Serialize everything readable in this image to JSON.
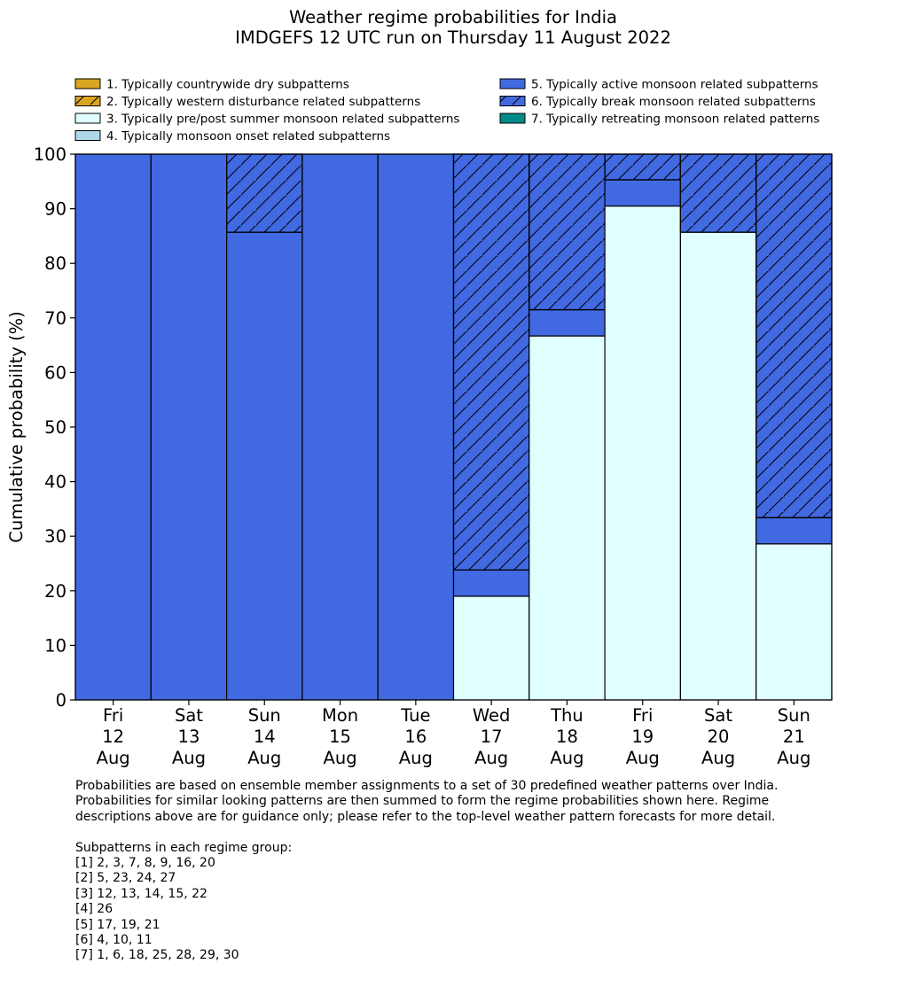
{
  "chart_data": {
    "type": "bar",
    "stacked": true,
    "title": "Weather regime probabilities for India",
    "subtitle": "IMDGEFS 12 UTC run on Thursday 11 August 2022",
    "ylabel": "Cumulative probability (%)",
    "xlabel": "",
    "ylim": [
      0,
      100
    ],
    "yticks": [
      "0",
      "10",
      "20",
      "30",
      "40",
      "50",
      "60",
      "70",
      "80",
      "90",
      "100"
    ],
    "grid": false,
    "legend_position": "top",
    "categories": [
      {
        "day": "Fri",
        "date": "12",
        "month": "Aug"
      },
      {
        "day": "Sat",
        "date": "13",
        "month": "Aug"
      },
      {
        "day": "Sun",
        "date": "14",
        "month": "Aug"
      },
      {
        "day": "Mon",
        "date": "15",
        "month": "Aug"
      },
      {
        "day": "Tue",
        "date": "16",
        "month": "Aug"
      },
      {
        "day": "Wed",
        "date": "17",
        "month": "Aug"
      },
      {
        "day": "Thu",
        "date": "18",
        "month": "Aug"
      },
      {
        "day": "Fri",
        "date": "19",
        "month": "Aug"
      },
      {
        "day": "Sat",
        "date": "20",
        "month": "Aug"
      },
      {
        "day": "Sun",
        "date": "21",
        "month": "Aug"
      }
    ],
    "series": [
      {
        "name": "1. Typically countrywide dry subpatterns",
        "color": "#daa520",
        "hatch": false,
        "values": [
          0,
          0,
          0,
          0,
          0,
          0,
          0,
          0,
          0,
          0
        ]
      },
      {
        "name": "2. Typically western disturbance related subpatterns",
        "color": "#daa520",
        "hatch": true,
        "values": [
          0,
          0,
          0,
          0,
          0,
          0,
          0,
          0,
          0,
          0
        ]
      },
      {
        "name": "3. Typically pre/post summer monsoon related subpatterns",
        "color": "#e0ffff",
        "hatch": false,
        "values": [
          0,
          0,
          0,
          0,
          0,
          19.0,
          66.7,
          90.5,
          85.7,
          28.6
        ]
      },
      {
        "name": "4. Typically monsoon onset related subpatterns",
        "color": "#add8e6",
        "hatch": false,
        "values": [
          0,
          0,
          0,
          0,
          0,
          0,
          0,
          0,
          0,
          0
        ]
      },
      {
        "name": "5. Typically active monsoon related subpatterns",
        "color": "#4169e1",
        "hatch": false,
        "values": [
          100,
          100,
          85.7,
          100,
          100,
          4.8,
          4.8,
          4.8,
          0,
          4.8
        ]
      },
      {
        "name": "6. Typically break monsoon related subpatterns",
        "color": "#4169e1",
        "hatch": true,
        "values": [
          0,
          0,
          14.3,
          0,
          0,
          76.2,
          28.5,
          4.7,
          14.3,
          66.6
        ]
      },
      {
        "name": "7. Typically retreating monsoon related patterns",
        "color": "#008b8b",
        "hatch": false,
        "values": [
          0,
          0,
          0,
          0,
          0,
          0,
          0,
          0,
          0,
          0
        ]
      }
    ]
  },
  "notes": {
    "lines": [
      "Probabilities are based on ensemble member assignments to a set of 30 predefined weather patterns over India.",
      "Probabilities for similar looking patterns are then summed to form the regime probabilities shown here. Regime",
      "descriptions above are for guidance only; please refer to the top-level weather pattern forecasts for more detail."
    ],
    "groups_heading": "Subpatterns in each regime group:",
    "groups": [
      "[1] 2, 3, 7, 8, 9, 16, 20",
      "[2] 5, 23, 24, 27",
      "[3] 12, 13, 14, 15, 22",
      "[4] 26",
      "[5] 17, 19, 21",
      "[6] 4, 10, 11",
      "[7] 1, 6, 18, 25, 28, 29, 30"
    ]
  }
}
